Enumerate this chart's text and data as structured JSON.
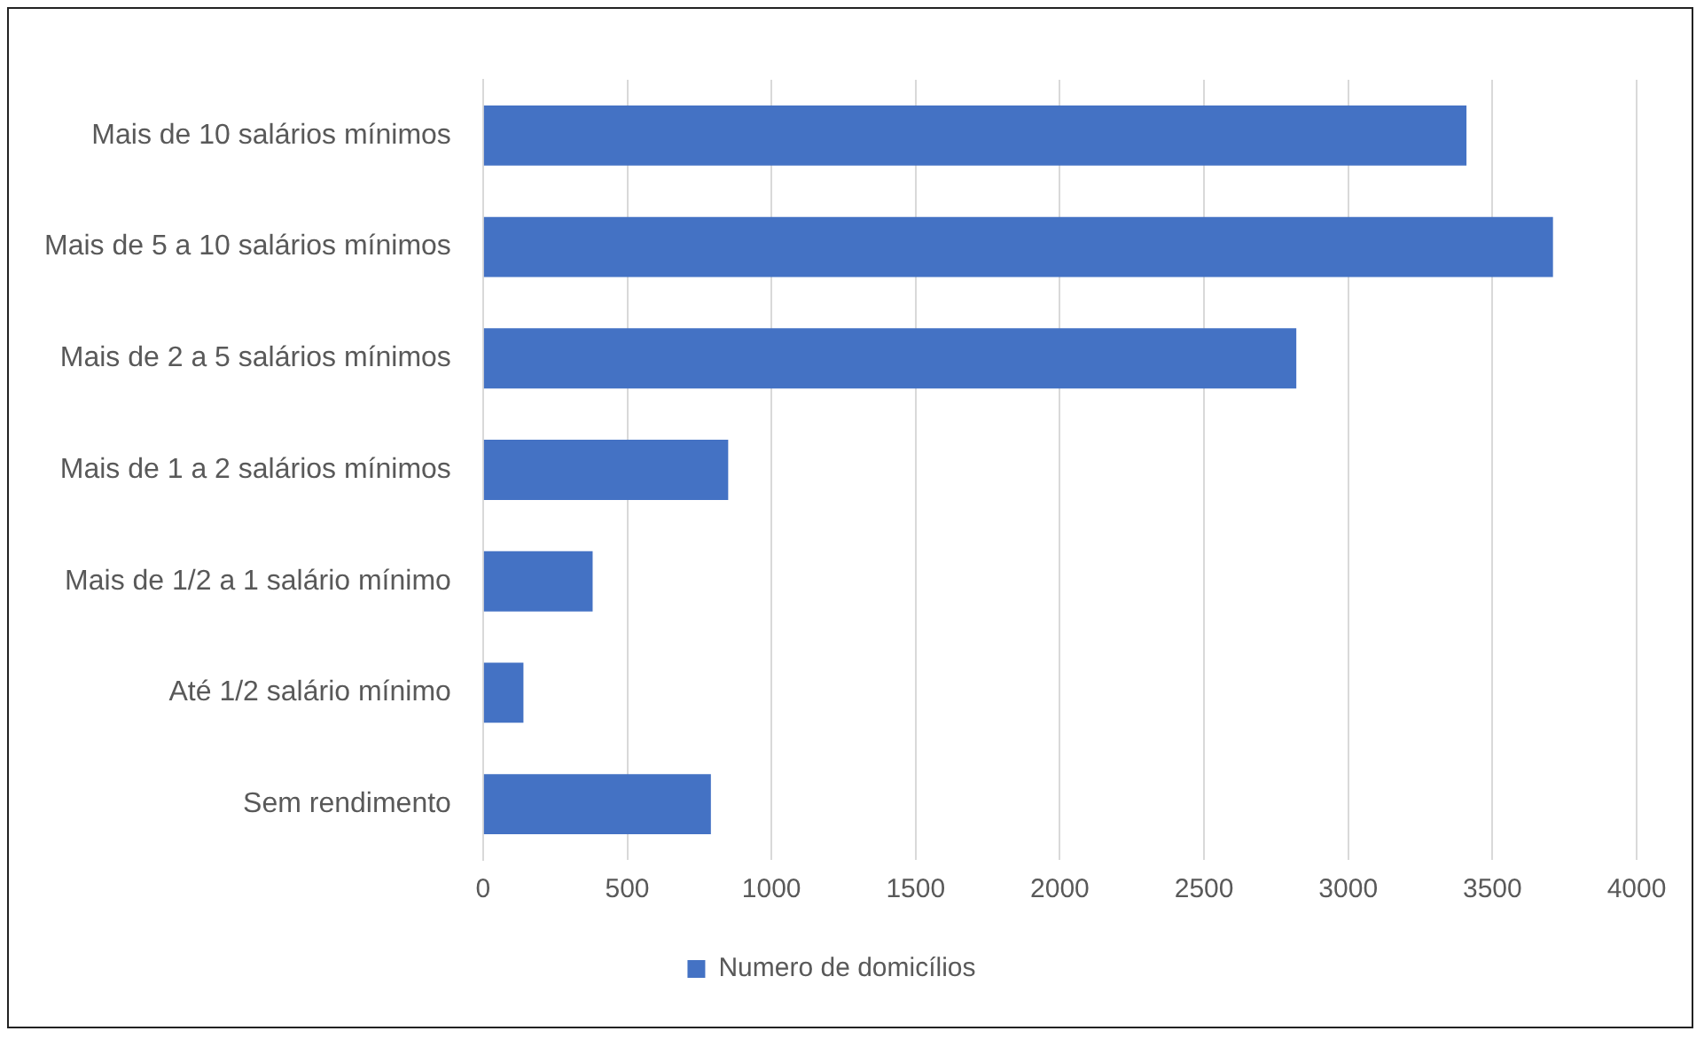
{
  "chart_data": {
    "type": "bar",
    "orientation": "horizontal",
    "categories": [
      "Mais de 10 salários mínimos",
      "Mais de 5 a 10 salários mínimos",
      "Mais de 2 a 5 salários mínimos",
      "Mais de 1 a 2 salários mínimos",
      "Mais de 1/2 a 1 salário mínimo",
      "Até 1/2 salário mínimo",
      "Sem rendimento"
    ],
    "series": [
      {
        "name": "Numero de domicílios",
        "color": "#4472c4",
        "values": [
          3410,
          3710,
          2820,
          850,
          380,
          140,
          790
        ]
      }
    ],
    "xlim": [
      0,
      4000
    ],
    "xticks": [
      0,
      500,
      1000,
      1500,
      2000,
      2500,
      3000,
      3500,
      4000
    ],
    "grid": "x",
    "legend": "bottom"
  }
}
